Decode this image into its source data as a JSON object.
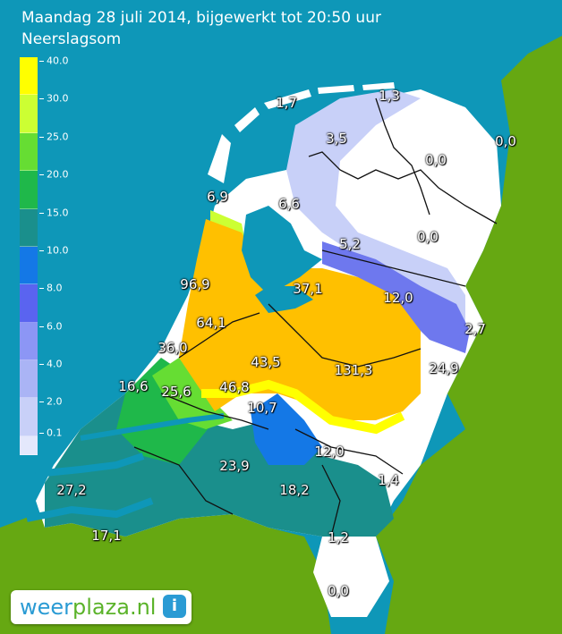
{
  "header": {
    "title": "Maandag 28 juli 2014, bijgewerkt tot 20:50 uur",
    "subtitle": "Neerslagsom"
  },
  "legend": {
    "labels": [
      "40.0",
      "30.0",
      "25.0",
      "20.0",
      "15.0",
      "10.0",
      "8.0",
      "6.0",
      "4.0",
      "2.0",
      "0.1"
    ],
    "colors": [
      "#ffff00",
      "#ccff33",
      "#66dd33",
      "#1fb84a",
      "#1a8f8c",
      "#1478e6",
      "#5a64f0",
      "#8c96f5",
      "#aab4f5",
      "#c8d0f8",
      "#e4e8fc"
    ]
  },
  "values": [
    {
      "id": "value-1-7",
      "text": "1,7"
    },
    {
      "id": "value-1-3",
      "text": "1,3"
    },
    {
      "id": "value-3-5",
      "text": "3,5"
    },
    {
      "id": "value-0-0-ne",
      "text": "0,0"
    },
    {
      "id": "value-0-0-n",
      "text": "0,0"
    },
    {
      "id": "value-6-9",
      "text": "6,9"
    },
    {
      "id": "value-6-6",
      "text": "6,6"
    },
    {
      "id": "value-5-2",
      "text": "5,2"
    },
    {
      "id": "value-0-0-e",
      "text": "0,0"
    },
    {
      "id": "value-96-9",
      "text": "96,9"
    },
    {
      "id": "value-37-1",
      "text": "37,1"
    },
    {
      "id": "value-12-0-e",
      "text": "12,0"
    },
    {
      "id": "value-64-1",
      "text": "64,1"
    },
    {
      "id": "value-2-7",
      "text": "2,7"
    },
    {
      "id": "value-36-0",
      "text": "36,0"
    },
    {
      "id": "value-43-5",
      "text": "43,5"
    },
    {
      "id": "value-131-3",
      "text": "131,3"
    },
    {
      "id": "value-24-9",
      "text": "24,9"
    },
    {
      "id": "value-16-6",
      "text": "16,6"
    },
    {
      "id": "value-25-6",
      "text": "25,6"
    },
    {
      "id": "value-46-8",
      "text": "46,8"
    },
    {
      "id": "value-10-7",
      "text": "10,7"
    },
    {
      "id": "value-12-0-s",
      "text": "12,0"
    },
    {
      "id": "value-23-9",
      "text": "23,9"
    },
    {
      "id": "value-1-4",
      "text": "1,4"
    },
    {
      "id": "value-27-2",
      "text": "27,2"
    },
    {
      "id": "value-18-2",
      "text": "18,2"
    },
    {
      "id": "value-17-1",
      "text": "17,1"
    },
    {
      "id": "value-1-2",
      "text": "1,2"
    },
    {
      "id": "value-0-0-s",
      "text": "0,0"
    }
  ],
  "logo": {
    "part1": "weer",
    "part2": "plaza.nl",
    "icon": "info-icon",
    "icon_glyph": "i"
  }
}
